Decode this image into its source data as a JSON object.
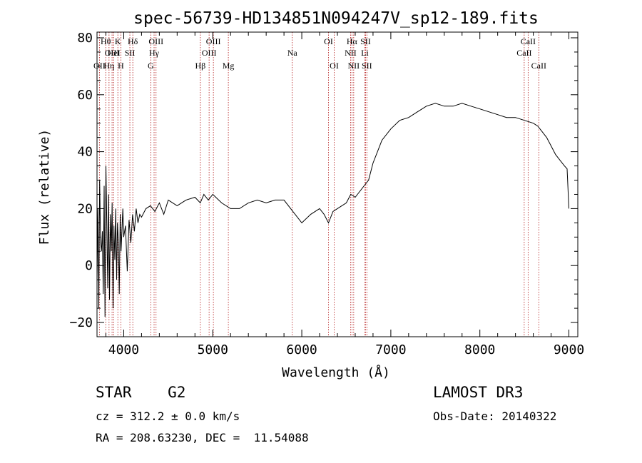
{
  "chart_data": {
    "type": "line",
    "title": "spec-56739-HD134851N094247V_sp12-189.fits",
    "xlabel": "Wavelength (Å)",
    "ylabel": "Flux (relative)",
    "xlim": [
      3700,
      9100
    ],
    "ylim": [
      -25,
      82
    ],
    "xticks": [
      4000,
      5000,
      6000,
      7000,
      8000,
      9000
    ],
    "yticks": [
      -20,
      0,
      20,
      40,
      60,
      80
    ],
    "series": [
      {
        "name": "flux",
        "x": [
          3700,
          3710,
          3720,
          3730,
          3740,
          3750,
          3760,
          3770,
          3780,
          3790,
          3800,
          3810,
          3820,
          3830,
          3840,
          3850,
          3860,
          3870,
          3880,
          3890,
          3900,
          3910,
          3920,
          3930,
          3940,
          3950,
          3960,
          3970,
          3980,
          3990,
          4000,
          4020,
          4040,
          4060,
          4080,
          4100,
          4120,
          4140,
          4160,
          4180,
          4200,
          4250,
          4300,
          4350,
          4400,
          4450,
          4500,
          4600,
          4700,
          4800,
          4860,
          4900,
          4950,
          5000,
          5100,
          5200,
          5300,
          5400,
          5500,
          5600,
          5700,
          5800,
          5900,
          6000,
          6100,
          6200,
          6250,
          6300,
          6350,
          6400,
          6450,
          6500,
          6550,
          6600,
          6650,
          6700,
          6750,
          6800,
          6850,
          6900,
          7000,
          7100,
          7200,
          7300,
          7400,
          7500,
          7600,
          7700,
          7800,
          7900,
          8000,
          8100,
          8200,
          8300,
          8400,
          8500,
          8600,
          8650,
          8700,
          8750,
          8800,
          8850,
          8900,
          8950,
          8980,
          9000
        ],
        "y": [
          -5,
          20,
          -15,
          30,
          8,
          5,
          12,
          -10,
          28,
          -18,
          35,
          15,
          -8,
          25,
          -12,
          18,
          5,
          22,
          -15,
          14,
          2,
          20,
          -5,
          15,
          8,
          -10,
          18,
          5,
          12,
          20,
          10,
          14,
          -2,
          16,
          8,
          18,
          12,
          20,
          15,
          18,
          17,
          20,
          21,
          19,
          22,
          18,
          23,
          21,
          23,
          24,
          22,
          25,
          23,
          25,
          22,
          20,
          20,
          22,
          23,
          22,
          23,
          23,
          19,
          15,
          18,
          20,
          18,
          15,
          19,
          20,
          21,
          22,
          25,
          24,
          26,
          28,
          30,
          36,
          40,
          44,
          48,
          51,
          52,
          54,
          56,
          57,
          56,
          56,
          57,
          56,
          55,
          54,
          53,
          52,
          52,
          51,
          50,
          49,
          47,
          45,
          42,
          39,
          37,
          35,
          34,
          20
        ]
      }
    ],
    "lines": [
      {
        "name": "OII",
        "wl": 3727,
        "label": "OII",
        "pos": "top",
        "row": 3
      },
      {
        "name": "Hθ",
        "wl": 3798,
        "label": "Hθ",
        "pos": "top",
        "row": 1
      },
      {
        "name": "OIII",
        "wl": 3869,
        "label": "OIII",
        "pos": "top",
        "row": 2
      },
      {
        "name": "Hη",
        "wl": 3835,
        "label": "Hη",
        "pos": "top",
        "row": 3
      },
      {
        "name": "HeI",
        "wl": 3889,
        "label": "HeI",
        "pos": "top",
        "row": 2
      },
      {
        "name": "K",
        "wl": 3934,
        "label": "K",
        "pos": "top",
        "row": 1
      },
      {
        "name": "H",
        "wl": 3968,
        "label": "H",
        "pos": "top",
        "row": 3
      },
      {
        "name": "SII",
        "wl": 4069,
        "label": "SII",
        "pos": "top",
        "row": 2
      },
      {
        "name": "Hδ",
        "wl": 4102,
        "label": "Hδ",
        "pos": "top",
        "row": 1
      },
      {
        "name": "Hγ",
        "wl": 4341,
        "label": "Hγ",
        "pos": "top",
        "row": 2
      },
      {
        "name": "OIII-4363",
        "wl": 4363,
        "label": "OIII",
        "pos": "top",
        "row": 1
      },
      {
        "name": "G",
        "wl": 4304,
        "label": "G",
        "pos": "top",
        "row": 3
      },
      {
        "name": "Hβ",
        "wl": 4861,
        "label": "Hβ",
        "pos": "top",
        "row": 3
      },
      {
        "name": "OIII-4959",
        "wl": 4959,
        "label": "OIII",
        "pos": "top",
        "row": 2
      },
      {
        "name": "OIII-5007",
        "wl": 5007,
        "label": "OIII",
        "pos": "top",
        "row": 1
      },
      {
        "name": "Mg",
        "wl": 5175,
        "label": "Mg",
        "pos": "top",
        "row": 3
      },
      {
        "name": "Na",
        "wl": 5893,
        "label": "Na",
        "pos": "top",
        "row": 2
      },
      {
        "name": "OI-6300",
        "wl": 6300,
        "label": "OI",
        "pos": "top",
        "row": 1
      },
      {
        "name": "OI-6364",
        "wl": 6364,
        "label": "OI",
        "pos": "top",
        "row": 3
      },
      {
        "name": "NII-6548",
        "wl": 6548,
        "label": "NII",
        "pos": "top",
        "row": 2
      },
      {
        "name": "Hα",
        "wl": 6563,
        "label": "Hα",
        "pos": "top",
        "row": 1
      },
      {
        "name": "NII-6583",
        "wl": 6583,
        "label": "NII",
        "pos": "top",
        "row": 3
      },
      {
        "name": "Li",
        "wl": 6708,
        "label": "Li",
        "pos": "top",
        "row": 2
      },
      {
        "name": "SII-6716",
        "wl": 6716,
        "label": "SII",
        "pos": "top",
        "row": 1
      },
      {
        "name": "SII-6731",
        "wl": 6731,
        "label": "SII",
        "pos": "top",
        "row": 3
      },
      {
        "name": "CaII-8498",
        "wl": 8498,
        "label": "CaII",
        "pos": "top",
        "row": 2
      },
      {
        "name": "CaII-8542",
        "wl": 8542,
        "label": "CaII",
        "pos": "top",
        "row": 1
      },
      {
        "name": "CaII-8662",
        "wl": 8662,
        "label": "CaII",
        "pos": "top",
        "row": 3
      }
    ]
  },
  "info": {
    "class": "STAR    G2",
    "survey": "LAMOST DR3",
    "cz": "cz = 312.2 ± 0.0 km/s",
    "obs_date": "Obs-Date: 20140322",
    "radec": "RA = 208.63230, DEC =  11.54088"
  }
}
